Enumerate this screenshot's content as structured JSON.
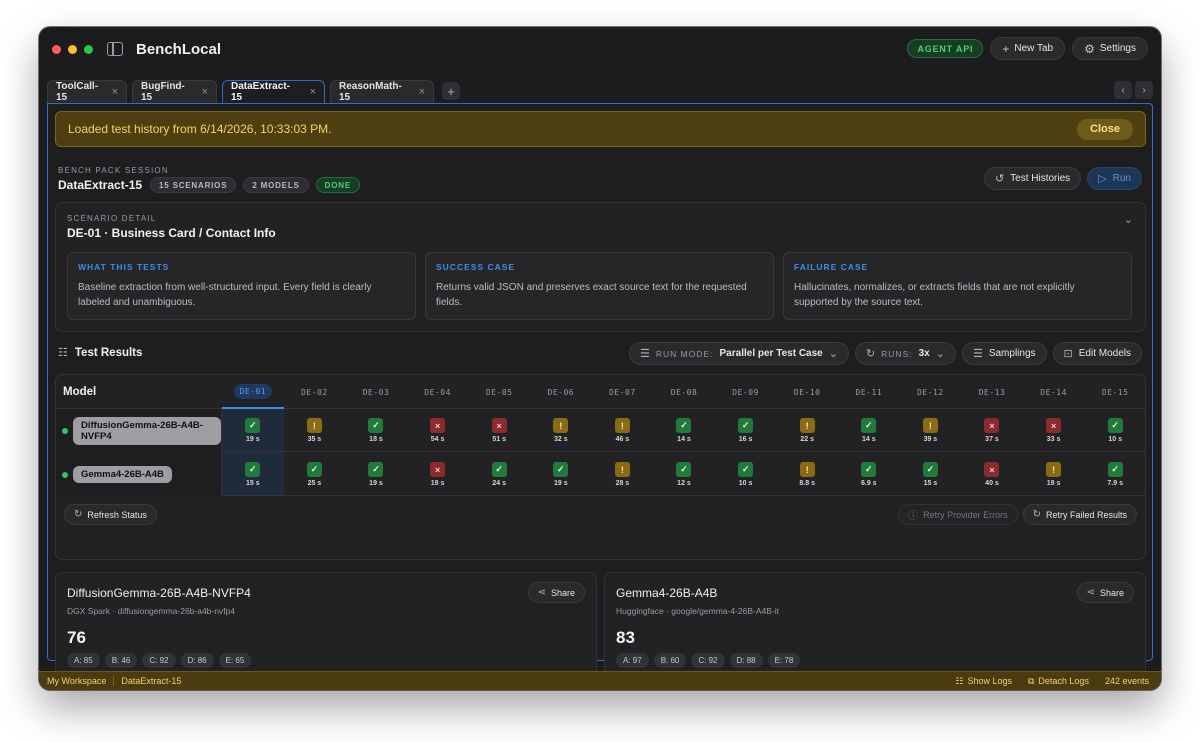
{
  "app": {
    "title": "BenchLocal"
  },
  "toolbar": {
    "agent_api": "AGENT API",
    "new_tab": "New Tab",
    "settings": "Settings"
  },
  "tabs": [
    {
      "label": "ToolCall-15",
      "active": false
    },
    {
      "label": "BugFind-15",
      "active": false
    },
    {
      "label": "DataExtract-15",
      "active": true
    },
    {
      "label": "ReasonMath-15",
      "active": false
    }
  ],
  "banner": {
    "text": "Loaded test history from 6/14/2026, 10:33:03 PM.",
    "close": "Close"
  },
  "session": {
    "eyebrow": "BENCH PACK SESSION",
    "title": "DataExtract-15",
    "scenarios": "15 SCENARIOS",
    "models": "2 MODELS",
    "status": "DONE",
    "histories_label": "Test Histories",
    "run_label": "Run"
  },
  "scenario": {
    "eyebrow": "SCENARIO DETAIL",
    "title": "DE-01 · Business Card / Contact Info",
    "boxes": [
      {
        "label": "WHAT THIS TESTS",
        "text": "Baseline extraction from well-structured input. Every field is clearly labeled and unambiguous."
      },
      {
        "label": "SUCCESS CASE",
        "text": "Returns valid JSON and preserves exact source text for the requested fields."
      },
      {
        "label": "FAILURE CASE",
        "text": "Hallucinates, normalizes, or extracts fields that are not explicitly supported by the source text."
      }
    ]
  },
  "results": {
    "title": "Test Results",
    "run_mode_label": "RUN MODE:",
    "run_mode_value": "Parallel per Test Case",
    "runs_label": "RUNS:",
    "runs_value": "3x",
    "samplings": "Samplings",
    "edit_models": "Edit Models",
    "model_header": "Model",
    "active_column": 0,
    "columns": [
      "DE-01",
      "DE-02",
      "DE-03",
      "DE-04",
      "DE-05",
      "DE-06",
      "DE-07",
      "DE-08",
      "DE-09",
      "DE-10",
      "DE-11",
      "DE-12",
      "DE-13",
      "DE-14",
      "DE-15"
    ],
    "rows": [
      {
        "model": "DiffusionGemma-26B-A4B-NVFP4",
        "cells": [
          {
            "s": "pass",
            "t": "19 s"
          },
          {
            "s": "warn",
            "t": "35 s"
          },
          {
            "s": "pass",
            "t": "18 s"
          },
          {
            "s": "fail",
            "t": "54 s"
          },
          {
            "s": "fail",
            "t": "51 s"
          },
          {
            "s": "warn",
            "t": "32 s"
          },
          {
            "s": "warn",
            "t": "46 s"
          },
          {
            "s": "pass",
            "t": "14 s"
          },
          {
            "s": "pass",
            "t": "16 s"
          },
          {
            "s": "warn",
            "t": "22 s"
          },
          {
            "s": "pass",
            "t": "14 s"
          },
          {
            "s": "warn",
            "t": "39 s"
          },
          {
            "s": "fail",
            "t": "37 s"
          },
          {
            "s": "fail",
            "t": "33 s"
          },
          {
            "s": "pass",
            "t": "10 s"
          }
        ]
      },
      {
        "model": "Gemma4-26B-A4B",
        "cells": [
          {
            "s": "pass",
            "t": "15 s"
          },
          {
            "s": "pass",
            "t": "25 s"
          },
          {
            "s": "pass",
            "t": "19 s"
          },
          {
            "s": "fail",
            "t": "19 s"
          },
          {
            "s": "pass",
            "t": "24 s"
          },
          {
            "s": "pass",
            "t": "19 s"
          },
          {
            "s": "warn",
            "t": "28 s"
          },
          {
            "s": "pass",
            "t": "12 s"
          },
          {
            "s": "pass",
            "t": "10 s"
          },
          {
            "s": "warn",
            "t": "8.8 s"
          },
          {
            "s": "pass",
            "t": "6.9 s"
          },
          {
            "s": "pass",
            "t": "15 s"
          },
          {
            "s": "fail",
            "t": "40 s"
          },
          {
            "s": "warn",
            "t": "19 s"
          },
          {
            "s": "pass",
            "t": "7.9 s"
          }
        ]
      }
    ],
    "refresh_status": "Refresh Status",
    "retry_provider": "Retry Provider Errors",
    "retry_failed": "Retry Failed Results"
  },
  "cards": [
    {
      "title": "DiffusionGemma-26B-A4B-NVFP4",
      "subtitle": "DGX Spark · diffusiongemma-26b-a4b-nvfp4",
      "score": "76",
      "share": "Share",
      "grades": [
        "A: 85",
        "B: 46",
        "C: 92",
        "D: 86",
        "E: 65"
      ]
    },
    {
      "title": "Gemma4-26B-A4B",
      "subtitle": "Huggingface · google/gemma-4-26B-A4B-it",
      "score": "83",
      "share": "Share",
      "grades": [
        "A: 97",
        "B: 60",
        "C: 92",
        "D: 88",
        "E: 78"
      ]
    }
  ],
  "statusbar": {
    "workspace": "My Workspace",
    "session": "DataExtract-15",
    "show_logs": "Show Logs",
    "detach_logs": "Detach Logs",
    "events": "242 events"
  },
  "icons": {
    "pass": "✓",
    "warn": "!",
    "fail": "×"
  }
}
